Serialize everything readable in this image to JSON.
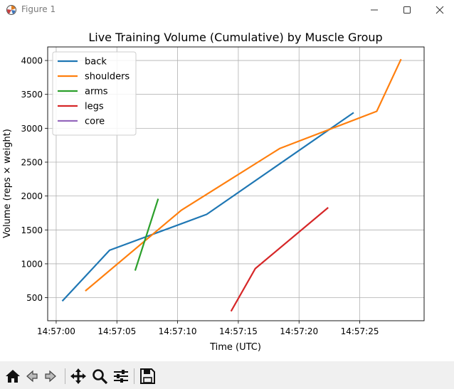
{
  "window": {
    "title": "Figure 1",
    "icon": "matplotlib-figure-icon",
    "controls": [
      "minimize-icon",
      "maximize-icon",
      "close-icon"
    ]
  },
  "toolbar": {
    "buttons": [
      "home-icon",
      "back-arrow-icon",
      "forward-arrow-icon",
      "pan-icon",
      "zoom-icon",
      "configure-subplots-icon",
      "save-icon"
    ]
  },
  "chart_data": {
    "type": "line",
    "title": "Live Training Volume (Cumulative) by Muscle Group",
    "xlabel": "Time (UTC)",
    "ylabel": "Volume (reps × weight)",
    "x_axis_kind": "time",
    "xlim": [
      "14:56:59.3",
      "14:57:30.3"
    ],
    "ylim": [
      160,
      4200
    ],
    "xticks": [
      "14:57:00",
      "14:57:05",
      "14:57:10",
      "14:57:15",
      "14:57:20",
      "14:57:25"
    ],
    "yticks": [
      500,
      1000,
      1500,
      2000,
      2500,
      3000,
      3500,
      4000
    ],
    "grid": true,
    "legend": "top-left",
    "series": [
      {
        "name": "back",
        "color": "#1f77b4",
        "x": [
          "14:57:00.5",
          "14:57:04.4",
          "14:57:12.4",
          "14:57:24.5"
        ],
        "y": [
          450,
          1200,
          1730,
          3230
        ]
      },
      {
        "name": "shoulders",
        "color": "#ff7f0e",
        "x": [
          "14:57:02.4",
          "14:57:10.3",
          "14:57:18.4",
          "14:57:26.4",
          "14:57:28.4"
        ],
        "y": [
          600,
          1790,
          2700,
          3250,
          4020
        ]
      },
      {
        "name": "arms",
        "color": "#2ca02c",
        "x": [
          "14:57:06.5",
          "14:57:08.4"
        ],
        "y": [
          900,
          1960
        ]
      },
      {
        "name": "legs",
        "color": "#d62728",
        "x": [
          "14:57:14.4",
          "14:57:16.4",
          "14:57:22.4"
        ],
        "y": [
          300,
          930,
          1830
        ]
      },
      {
        "name": "core",
        "color": "#9467bd",
        "x": [],
        "y": []
      }
    ]
  }
}
